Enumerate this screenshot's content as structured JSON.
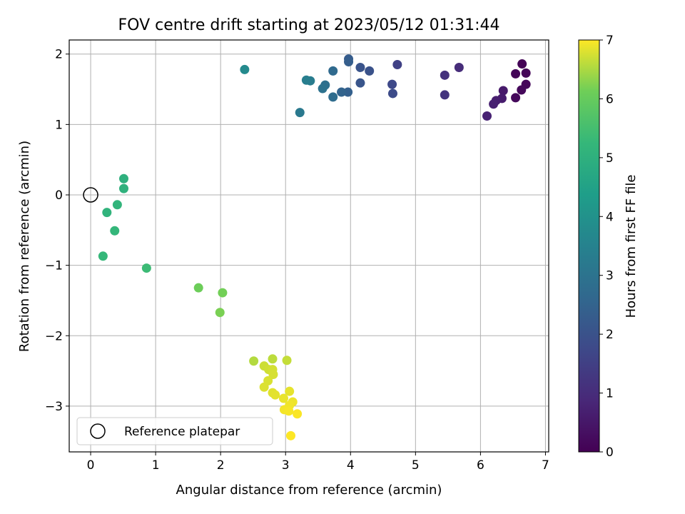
{
  "chart_data": {
    "type": "scatter",
    "title": "FOV centre drift starting at 2023/05/12 01:31:44",
    "xlabel": "Angular distance from reference (arcmin)",
    "ylabel": "Rotation from reference (arcmin)",
    "xlim": [
      -0.33,
      7.05
    ],
    "ylim": [
      -3.65,
      2.2
    ],
    "xticks": [
      0,
      1,
      2,
      3,
      4,
      5,
      6,
      7
    ],
    "yticks": [
      -3,
      -2,
      -1,
      0,
      1,
      2
    ],
    "grid": true,
    "legend": {
      "placement": "lower-left",
      "entries": [
        "Reference platepar"
      ]
    },
    "reference_point": {
      "x": 0,
      "y": 0
    },
    "colorbar": {
      "label": "Hours from first FF file",
      "range": [
        0,
        7
      ],
      "ticks": [
        0,
        1,
        2,
        3,
        4,
        5,
        6,
        7
      ],
      "colormap": "viridis"
    },
    "points": [
      {
        "x": 6.64,
        "y": 1.86,
        "h": 0.05
      },
      {
        "x": 6.7,
        "y": 1.73,
        "h": 0.08
      },
      {
        "x": 6.54,
        "y": 1.72,
        "h": 0.1
      },
      {
        "x": 6.7,
        "y": 1.57,
        "h": 0.12
      },
      {
        "x": 6.63,
        "y": 1.49,
        "h": 0.15
      },
      {
        "x": 6.54,
        "y": 1.38,
        "h": 0.18
      },
      {
        "x": 6.35,
        "y": 1.48,
        "h": 0.55
      },
      {
        "x": 6.33,
        "y": 1.37,
        "h": 0.6
      },
      {
        "x": 6.24,
        "y": 1.34,
        "h": 0.65
      },
      {
        "x": 6.2,
        "y": 1.29,
        "h": 0.7
      },
      {
        "x": 6.1,
        "y": 1.12,
        "h": 0.75
      },
      {
        "x": 5.67,
        "y": 1.81,
        "h": 1.0
      },
      {
        "x": 5.45,
        "y": 1.7,
        "h": 1.15
      },
      {
        "x": 5.45,
        "y": 1.42,
        "h": 1.2
      },
      {
        "x": 4.72,
        "y": 1.85,
        "h": 1.55
      },
      {
        "x": 4.64,
        "y": 1.57,
        "h": 1.75
      },
      {
        "x": 4.65,
        "y": 1.44,
        "h": 1.8
      },
      {
        "x": 4.29,
        "y": 1.76,
        "h": 2.0
      },
      {
        "x": 4.15,
        "y": 1.81,
        "h": 2.05
      },
      {
        "x": 4.15,
        "y": 1.59,
        "h": 2.1
      },
      {
        "x": 3.97,
        "y": 1.93,
        "h": 2.3
      },
      {
        "x": 3.97,
        "y": 1.89,
        "h": 2.35
      },
      {
        "x": 3.96,
        "y": 1.46,
        "h": 2.4
      },
      {
        "x": 3.86,
        "y": 1.46,
        "h": 2.5
      },
      {
        "x": 3.73,
        "y": 1.76,
        "h": 2.7
      },
      {
        "x": 3.73,
        "y": 1.39,
        "h": 2.75
      },
      {
        "x": 3.61,
        "y": 1.56,
        "h": 2.9
      },
      {
        "x": 3.57,
        "y": 1.51,
        "h": 2.95
      },
      {
        "x": 3.38,
        "y": 1.62,
        "h": 3.3
      },
      {
        "x": 3.32,
        "y": 1.63,
        "h": 3.35
      },
      {
        "x": 3.22,
        "y": 1.17,
        "h": 3.2
      },
      {
        "x": 2.37,
        "y": 1.78,
        "h": 3.75
      },
      {
        "x": 0.51,
        "y": 0.23,
        "h": 5.0
      },
      {
        "x": 0.51,
        "y": 0.09,
        "h": 5.05
      },
      {
        "x": 0.25,
        "y": -0.25,
        "h": 5.1
      },
      {
        "x": 0.41,
        "y": -0.14,
        "h": 5.15
      },
      {
        "x": 0.37,
        "y": -0.51,
        "h": 5.2
      },
      {
        "x": 0.19,
        "y": -0.87,
        "h": 5.25
      },
      {
        "x": 0.86,
        "y": -1.04,
        "h": 5.35
      },
      {
        "x": 1.66,
        "y": -1.32,
        "h": 6.1
      },
      {
        "x": 2.03,
        "y": -1.39,
        "h": 6.15
      },
      {
        "x": 1.99,
        "y": -1.67,
        "h": 6.2
      },
      {
        "x": 2.51,
        "y": -2.36,
        "h": 6.55
      },
      {
        "x": 2.8,
        "y": -2.33,
        "h": 6.6
      },
      {
        "x": 3.02,
        "y": -2.35,
        "h": 6.65
      },
      {
        "x": 2.67,
        "y": -2.43,
        "h": 6.7
      },
      {
        "x": 2.74,
        "y": -2.48,
        "h": 6.72
      },
      {
        "x": 2.8,
        "y": -2.48,
        "h": 6.74
      },
      {
        "x": 2.81,
        "y": -2.55,
        "h": 6.76
      },
      {
        "x": 2.73,
        "y": -2.64,
        "h": 6.78
      },
      {
        "x": 2.67,
        "y": -2.73,
        "h": 6.8
      },
      {
        "x": 2.8,
        "y": -2.81,
        "h": 6.82
      },
      {
        "x": 2.84,
        "y": -2.84,
        "h": 6.84
      },
      {
        "x": 3.06,
        "y": -2.79,
        "h": 6.86
      },
      {
        "x": 2.97,
        "y": -2.89,
        "h": 6.88
      },
      {
        "x": 3.11,
        "y": -2.94,
        "h": 6.9
      },
      {
        "x": 3.06,
        "y": -2.99,
        "h": 6.92
      },
      {
        "x": 2.98,
        "y": -3.05,
        "h": 6.94
      },
      {
        "x": 3.05,
        "y": -3.07,
        "h": 6.96
      },
      {
        "x": 3.18,
        "y": -3.11,
        "h": 6.98
      },
      {
        "x": 3.08,
        "y": -3.42,
        "h": 7.0
      }
    ]
  }
}
